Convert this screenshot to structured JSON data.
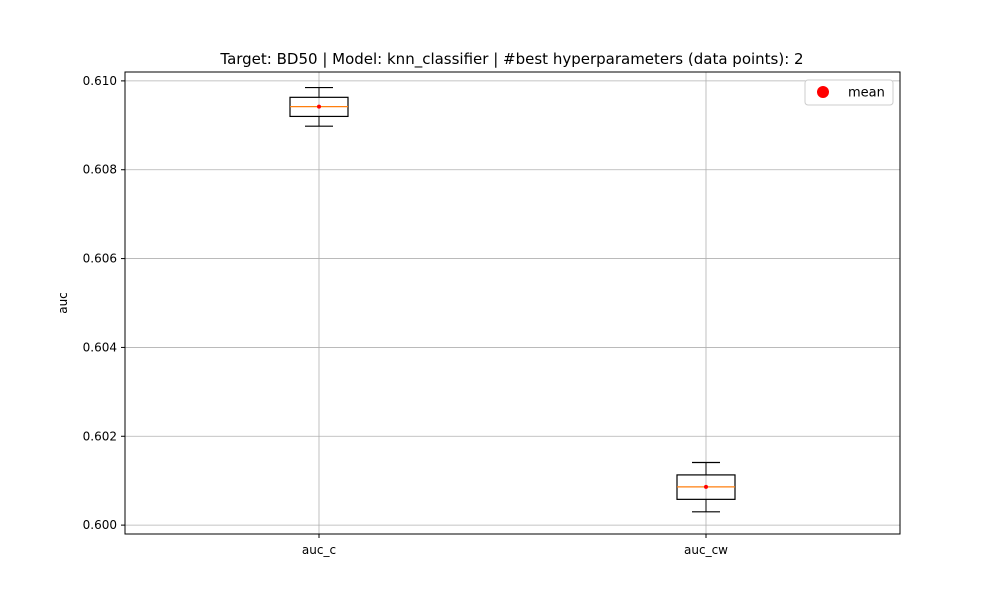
{
  "chart_data": {
    "type": "box",
    "title": "Target: BD50 | Model: knn_classifier | #best hyperparameters (data points): 2",
    "xlabel": "",
    "ylabel": "auc",
    "categories": [
      "auc_c",
      "auc_cw"
    ],
    "ylim": [
      0.5998,
      0.6102
    ],
    "yticks": [
      0.6,
      0.602,
      0.604,
      0.606,
      0.608,
      0.61
    ],
    "ytick_labels": [
      "0.600",
      "0.602",
      "0.604",
      "0.606",
      "0.608",
      "0.610"
    ],
    "grid": true,
    "legend": {
      "placement": "top-right",
      "entries": [
        {
          "label": "mean",
          "color": "#ff0000",
          "marker": "circle"
        }
      ]
    },
    "boxes": [
      {
        "category": "auc_c",
        "whisker_low": 0.60898,
        "q1": 0.6092,
        "median": 0.60942,
        "q3": 0.60963,
        "whisker_high": 0.60985,
        "mean": 0.60942
      },
      {
        "category": "auc_cw",
        "whisker_low": 0.6003,
        "q1": 0.60058,
        "median": 0.60086,
        "q3": 0.60113,
        "whisker_high": 0.60141,
        "mean": 0.60086
      }
    ],
    "colors": {
      "box": "#000000",
      "median": "#ff7f0e",
      "mean": "#ff0000",
      "grid": "#b0b0b0"
    }
  }
}
